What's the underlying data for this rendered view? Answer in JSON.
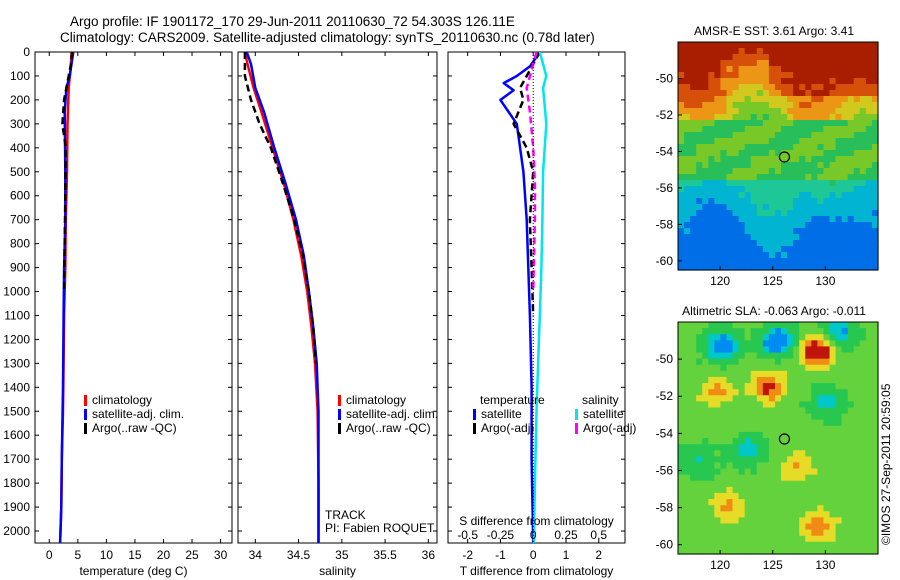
{
  "header": {
    "line1": "Argo profile: IF 1901172_170 29-Jun-2011 20110630_72 54.303S 126.11E",
    "line2": "Climatology: CARS2009. Satellite-adjusted climatology: synTS_20110630.nc (0.78d later)"
  },
  "stamp": "©IMOS 27-Sep-2011 20:59:05",
  "colors": {
    "climatology": "#ff0000",
    "satellite": "#0000ff",
    "argo": "#000000",
    "sat_salinity": "#00e5ee",
    "argo_salinity": "#ff00ff"
  },
  "chart_data": [
    {
      "id": "temperature",
      "type": "line",
      "xlabel": "temperature (deg C)",
      "xlim": [
        -2.5,
        32
      ],
      "xticks": [
        "0",
        "5",
        "10",
        "15",
        "20",
        "25",
        "30"
      ],
      "ylim": [
        0,
        2050
      ],
      "yticks": [
        "0",
        "100",
        "200",
        "300",
        "400",
        "500",
        "600",
        "700",
        "800",
        "900",
        "1000",
        "1100",
        "1200",
        "1300",
        "1400",
        "1500",
        "1600",
        "1700",
        "1800",
        "1900",
        "2000"
      ],
      "y_reversed": true,
      "legend": [
        "climatology",
        "satellite-adj. clim.",
        "Argo(..raw -QC)"
      ],
      "series": [
        {
          "name": "climatology",
          "color": "#ff0000",
          "style": "solid",
          "x": [
            3.9,
            3.8,
            3.4,
            3.2,
            3.1,
            2.9,
            2.8,
            2.6,
            2.5,
            2.4,
            2.2,
            2.1,
            1.9
          ],
          "y": [
            0,
            50,
            150,
            300,
            500,
            700,
            900,
            1100,
            1300,
            1500,
            1700,
            1900,
            2050
          ]
        },
        {
          "name": "satellite-adj. clim.",
          "color": "#0000ff",
          "style": "solid",
          "x": [
            4.2,
            3.9,
            3.6,
            3.0,
            2.7,
            2.8,
            2.8,
            2.6,
            2.5,
            2.4,
            2.2,
            2.1,
            1.9
          ],
          "y": [
            0,
            50,
            100,
            150,
            250,
            500,
            700,
            900,
            1100,
            1400,
            1700,
            1900,
            2050
          ]
        },
        {
          "name": "Argo(..raw -QC)",
          "color": "#000000",
          "style": "dashed",
          "x": [
            4.0,
            3.8,
            3.4,
            2.6,
            2.3,
            2.9,
            2.8,
            2.7,
            2.6
          ],
          "y": [
            0,
            50,
            100,
            200,
            300,
            400,
            600,
            800,
            1000
          ]
        }
      ]
    },
    {
      "id": "salinity",
      "type": "line",
      "xlabel": "salinity",
      "xlim": [
        33.8,
        36.1
      ],
      "xticks": [
        "34",
        "34.5",
        "35",
        "35.5",
        "36"
      ],
      "ylim": [
        0,
        2050
      ],
      "y_reversed": true,
      "legend": [
        "climatology",
        "satellite-adj. clim.",
        "Argo(..raw -QC)"
      ],
      "annotations": [
        "TRACK",
        "PI: Fabien ROQUET"
      ],
      "series": [
        {
          "name": "climatology",
          "color": "#ff0000",
          "style": "solid",
          "x": [
            33.88,
            33.91,
            33.98,
            34.07,
            34.2,
            34.33,
            34.44,
            34.53,
            34.6,
            34.65,
            34.69,
            34.72,
            34.73,
            34.73
          ],
          "y": [
            0,
            50,
            150,
            250,
            400,
            550,
            700,
            850,
            1000,
            1150,
            1300,
            1500,
            1800,
            2050
          ]
        },
        {
          "name": "satellite-adj. clim.",
          "color": "#0000ff",
          "style": "solid",
          "x": [
            33.9,
            33.95,
            34.0,
            34.1,
            34.22,
            34.35,
            34.47,
            34.56,
            34.62,
            34.67,
            34.71,
            34.73,
            34.73,
            34.73
          ],
          "y": [
            0,
            50,
            150,
            250,
            400,
            550,
            700,
            850,
            1000,
            1150,
            1300,
            1500,
            1800,
            2050
          ]
        },
        {
          "name": "Argo(..raw -QC)",
          "color": "#000000",
          "style": "dashed",
          "x": [
            33.88,
            33.88,
            33.95,
            34.05,
            34.18,
            34.32,
            34.45,
            34.55,
            34.62,
            34.67,
            34.7
          ],
          "y": [
            0,
            100,
            200,
            300,
            400,
            550,
            700,
            850,
            1000,
            1150,
            1300
          ]
        }
      ]
    },
    {
      "id": "difference",
      "type": "line",
      "xlabel": "T difference from climatology",
      "x2label": "S difference from climatology",
      "xlim": [
        -2.6,
        2.8
      ],
      "xticks": [
        "-2",
        "-1",
        "0",
        "1",
        "2"
      ],
      "x2ticks": [
        "-0.5",
        "-0.25",
        "0",
        "0.25",
        "0.5"
      ],
      "ylim": [
        0,
        2050
      ],
      "y_reversed": true,
      "legend_groups": [
        {
          "title": "temperature",
          "items": [
            "satellite",
            "Argo(-adj)"
          ]
        },
        {
          "title": "salinity",
          "items": [
            "satellite",
            "Argo(-adj)"
          ]
        }
      ],
      "series": [
        {
          "name": "temperature satellite",
          "color": "#0000ff",
          "style": "solid",
          "x": [
            0.2,
            -0.1,
            -0.5,
            -0.9,
            -0.6,
            -1.0,
            -0.5,
            -0.3,
            -0.2,
            -0.15,
            -0.1,
            -0.05,
            -0.05,
            0.0
          ],
          "y": [
            0,
            60,
            100,
            130,
            160,
            200,
            300,
            500,
            700,
            900,
            1100,
            1400,
            1700,
            2050
          ]
        },
        {
          "name": "temperature Argo(-adj)",
          "color": "#000000",
          "style": "dashed",
          "x": [
            0.2,
            -0.2,
            -0.4,
            -0.3,
            -0.6,
            -0.2,
            0.0,
            -0.1,
            -0.05,
            0.0
          ],
          "y": [
            0,
            100,
            150,
            200,
            300,
            400,
            500,
            700,
            900,
            1100
          ]
        },
        {
          "name": "salinity satellite",
          "color": "#00e5ee",
          "style": "solid",
          "x": [
            0.2,
            0.4,
            0.3,
            0.4,
            0.3,
            0.28,
            0.25,
            0.2,
            0.15,
            0.1,
            0.05,
            0.02
          ],
          "y": [
            0,
            100,
            150,
            300,
            500,
            700,
            900,
            1100,
            1300,
            1500,
            1800,
            2050
          ]
        },
        {
          "name": "salinity Argo(-adj)",
          "color": "#ff00ff",
          "style": "dashed",
          "x": [
            0.1,
            -0.2,
            -0.1,
            0.0,
            0.05,
            0.05,
            0.0
          ],
          "y": [
            0,
            150,
            250,
            400,
            550,
            700,
            1000
          ]
        }
      ]
    },
    {
      "id": "sst-map",
      "type": "heatmap",
      "title": "AMSR-E SST: 3.61 Argo: 3.41",
      "xlim": [
        116,
        135
      ],
      "ylim": [
        -60.5,
        -48
      ],
      "xticks": [
        "120",
        "125",
        "130"
      ],
      "yticks": [
        "-50",
        "-52",
        "-54",
        "-56",
        "-58",
        "-60"
      ],
      "marker": {
        "lon": 126.11,
        "lat": -54.303
      }
    },
    {
      "id": "sla-map",
      "type": "heatmap",
      "title": "Altimetric SLA: -0.063 Argo: -0.011",
      "xlim": [
        116,
        135
      ],
      "ylim": [
        -60.5,
        -48
      ],
      "xticks": [
        "120",
        "125",
        "130"
      ],
      "yticks": [
        "-50",
        "-52",
        "-54",
        "-56",
        "-58",
        "-60"
      ],
      "marker": {
        "lon": 126.11,
        "lat": -54.303
      }
    }
  ]
}
